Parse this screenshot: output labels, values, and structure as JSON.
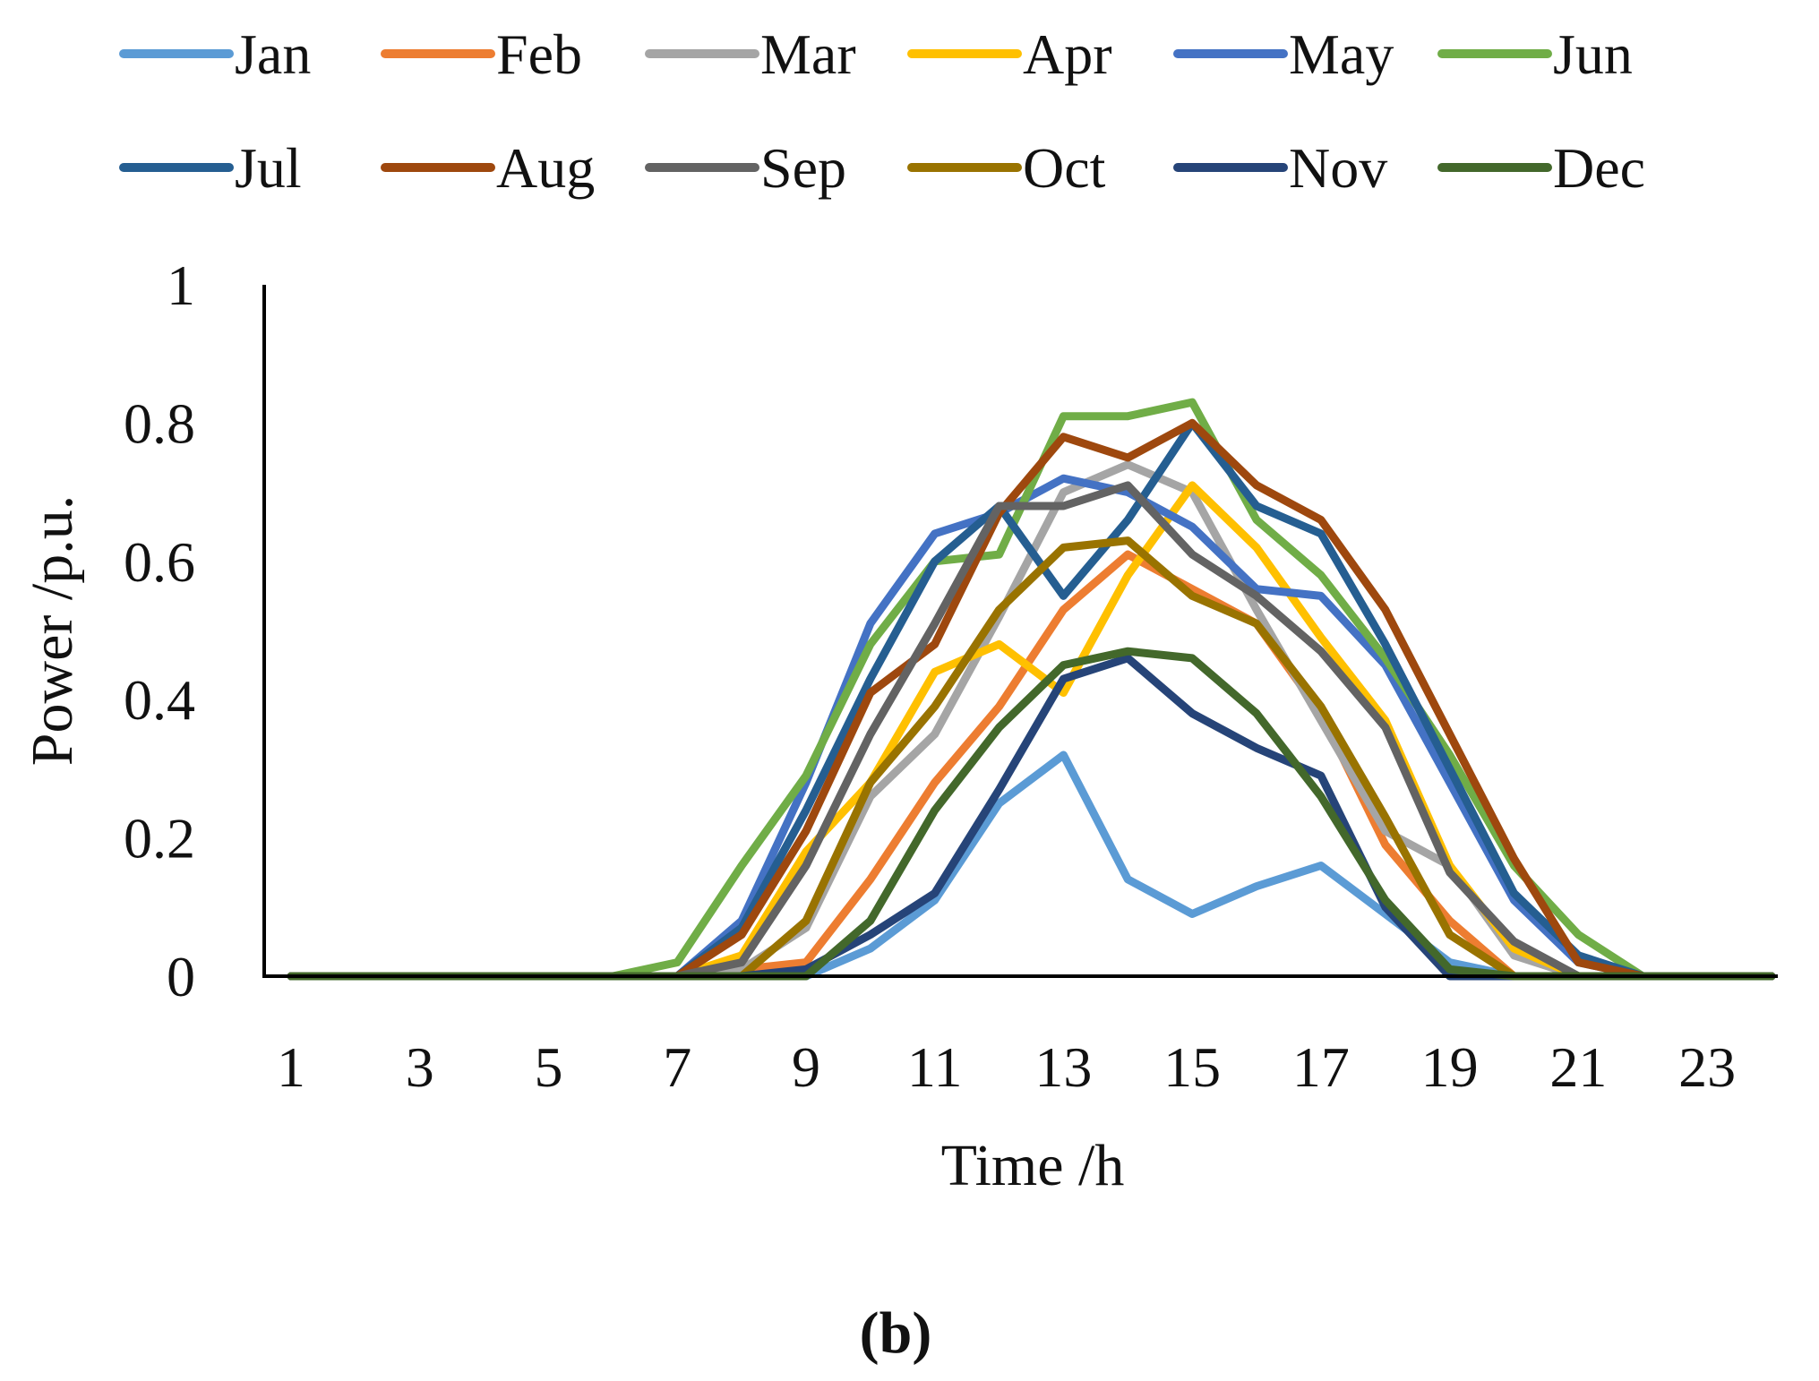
{
  "chart_data": {
    "type": "line",
    "title": "",
    "xlabel": "Time /h",
    "ylabel": "Power /p.u.",
    "caption_prefix": "(",
    "caption_letter": "b",
    "caption_suffix": ")",
    "xlim": [
      1,
      24
    ],
    "ylim": [
      0,
      1
    ],
    "x": [
      1,
      2,
      3,
      4,
      5,
      6,
      7,
      8,
      9,
      10,
      11,
      12,
      13,
      14,
      15,
      16,
      17,
      18,
      19,
      20,
      21,
      22,
      23,
      24
    ],
    "x_ticks": [
      1,
      3,
      5,
      7,
      9,
      11,
      13,
      15,
      17,
      19,
      21,
      23
    ],
    "x_tick_labels": [
      "1",
      "3",
      "5",
      "7",
      "9",
      "11",
      "13",
      "15",
      "17",
      "19",
      "21",
      "23"
    ],
    "y_ticks": [
      0,
      0.2,
      0.4,
      0.6,
      0.8,
      1
    ],
    "y_tick_labels": [
      "0",
      "0.2",
      "0.4",
      "0.6",
      "0.8",
      "1"
    ],
    "grid": false,
    "legend_position": "top",
    "series": [
      {
        "name": "Jan",
        "color": "#5B9BD5",
        "values": [
          0,
          0,
          0,
          0,
          0,
          0,
          0,
          0,
          0,
          0.04,
          0.11,
          0.25,
          0.32,
          0.14,
          0.09,
          0.13,
          0.16,
          0.09,
          0.02,
          0,
          0,
          0,
          0,
          0
        ]
      },
      {
        "name": "Feb",
        "color": "#ED7D31",
        "values": [
          0,
          0,
          0,
          0,
          0,
          0,
          0,
          0.01,
          0.02,
          0.14,
          0.28,
          0.39,
          0.53,
          0.61,
          0.56,
          0.51,
          0.38,
          0.19,
          0.08,
          0,
          0,
          0,
          0,
          0
        ]
      },
      {
        "name": "Mar",
        "color": "#A5A5A5",
        "values": [
          0,
          0,
          0,
          0,
          0,
          0,
          0,
          0.01,
          0.07,
          0.26,
          0.35,
          0.52,
          0.7,
          0.74,
          0.7,
          0.53,
          0.37,
          0.21,
          0.16,
          0.03,
          0,
          0,
          0,
          0
        ]
      },
      {
        "name": "Apr",
        "color": "#FFC000",
        "values": [
          0,
          0,
          0,
          0,
          0,
          0,
          0,
          0.03,
          0.18,
          0.28,
          0.44,
          0.48,
          0.41,
          0.58,
          0.71,
          0.62,
          0.49,
          0.37,
          0.16,
          0.04,
          0,
          0,
          0,
          0
        ]
      },
      {
        "name": "May",
        "color": "#4472C4",
        "values": [
          0,
          0,
          0,
          0,
          0,
          0,
          0,
          0.08,
          0.28,
          0.51,
          0.64,
          0.67,
          0.72,
          0.7,
          0.65,
          0.56,
          0.55,
          0.45,
          0.28,
          0.11,
          0.02,
          0,
          0,
          0
        ]
      },
      {
        "name": "Jun",
        "color": "#70AD47",
        "values": [
          0,
          0,
          0,
          0,
          0,
          0,
          0.02,
          0.16,
          0.29,
          0.48,
          0.6,
          0.61,
          0.81,
          0.81,
          0.83,
          0.66,
          0.58,
          0.46,
          0.32,
          0.16,
          0.06,
          0,
          0,
          0
        ]
      },
      {
        "name": "Jul",
        "color": "#255E91",
        "values": [
          0,
          0,
          0,
          0,
          0,
          0,
          0,
          0.07,
          0.24,
          0.43,
          0.6,
          0.68,
          0.55,
          0.66,
          0.8,
          0.68,
          0.64,
          0.48,
          0.3,
          0.12,
          0.03,
          0,
          0,
          0
        ]
      },
      {
        "name": "Aug",
        "color": "#9E480E",
        "values": [
          0,
          0,
          0,
          0,
          0,
          0,
          0,
          0.06,
          0.21,
          0.41,
          0.48,
          0.67,
          0.78,
          0.75,
          0.8,
          0.71,
          0.66,
          0.53,
          0.35,
          0.17,
          0.02,
          0,
          0,
          0
        ]
      },
      {
        "name": "Sep",
        "color": "#636363",
        "values": [
          0,
          0,
          0,
          0,
          0,
          0,
          0,
          0.02,
          0.16,
          0.35,
          0.51,
          0.68,
          0.68,
          0.71,
          0.61,
          0.55,
          0.47,
          0.36,
          0.15,
          0.05,
          0,
          0,
          0,
          0
        ]
      },
      {
        "name": "Oct",
        "color": "#997300",
        "values": [
          0,
          0,
          0,
          0,
          0,
          0,
          0,
          0,
          0.08,
          0.28,
          0.39,
          0.53,
          0.62,
          0.63,
          0.55,
          0.51,
          0.39,
          0.23,
          0.06,
          0,
          0,
          0,
          0,
          0
        ]
      },
      {
        "name": "Nov",
        "color": "#264478",
        "values": [
          0,
          0,
          0,
          0,
          0,
          0,
          0,
          0,
          0.01,
          0.06,
          0.12,
          0.27,
          0.43,
          0.46,
          0.38,
          0.33,
          0.29,
          0.1,
          0,
          0,
          0,
          0,
          0,
          0
        ]
      },
      {
        "name": "Dec",
        "color": "#43682B",
        "values": [
          0,
          0,
          0,
          0,
          0,
          0,
          0,
          0,
          0,
          0.08,
          0.24,
          0.36,
          0.45,
          0.47,
          0.46,
          0.38,
          0.26,
          0.11,
          0.01,
          0,
          0,
          0,
          0,
          0
        ]
      }
    ]
  }
}
